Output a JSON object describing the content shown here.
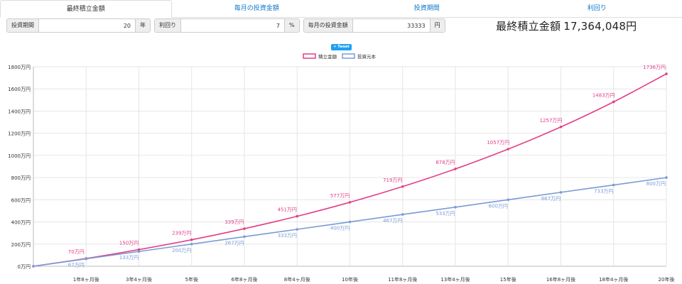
{
  "tabs": [
    {
      "label": "最終積立金額"
    },
    {
      "label": "毎月の投資金額"
    },
    {
      "label": "投資期間"
    },
    {
      "label": "利回り"
    }
  ],
  "form": {
    "period": {
      "label": "投資期間",
      "value": "20",
      "unit": "年"
    },
    "rate": {
      "label": "利回り",
      "value": "7",
      "unit": "%"
    },
    "monthly": {
      "label": "毎月の投資金額",
      "value": "33333",
      "unit": "円"
    }
  },
  "result": {
    "label": "最終積立金額",
    "value": "17,364,048円"
  },
  "tweet_label": "Tweet",
  "colors": {
    "final": "#e23f87",
    "principal": "#7a9bd6",
    "accent": "#0f77c9"
  },
  "chart_data": {
    "type": "line",
    "legend_position": "top-center",
    "grid": true,
    "categories": [
      "",
      "1年8ヶ月後",
      "3年4ヶ月後",
      "5年後",
      "6年8ヶ月後",
      "8年4ヶ月後",
      "10年後",
      "11年8ヶ月後",
      "13年4ヶ月後",
      "15年後",
      "16年8ヶ月後",
      "18年4ヶ月後",
      "20年後"
    ],
    "ylim": [
      0,
      1800
    ],
    "yticks": [
      "0万円",
      "200万円",
      "400万円",
      "600万円",
      "800万円",
      "1000万円",
      "1200万円",
      "1400万円",
      "1600万円",
      "1800万円"
    ],
    "series": [
      {
        "name": "積立金額",
        "values": [
          0,
          70,
          150,
          239,
          339,
          451,
          577,
          719,
          878,
          1057,
          1257,
          1483,
          1736
        ],
        "labels": [
          "",
          "70万円",
          "150万円",
          "239万円",
          "339万円",
          "451万円",
          "577万円",
          "719万円",
          "878万円",
          "1057万円",
          "1257万円",
          "1483万円",
          "1736万円"
        ]
      },
      {
        "name": "投資元本",
        "values": [
          0,
          67,
          133,
          200,
          267,
          333,
          400,
          467,
          533,
          600,
          667,
          733,
          800
        ],
        "labels": [
          "",
          "67万円",
          "133万円",
          "200万円",
          "267万円",
          "333万円",
          "400万円",
          "467万円",
          "533万円",
          "600万円",
          "667万円",
          "733万円",
          "800万円"
        ]
      }
    ]
  }
}
